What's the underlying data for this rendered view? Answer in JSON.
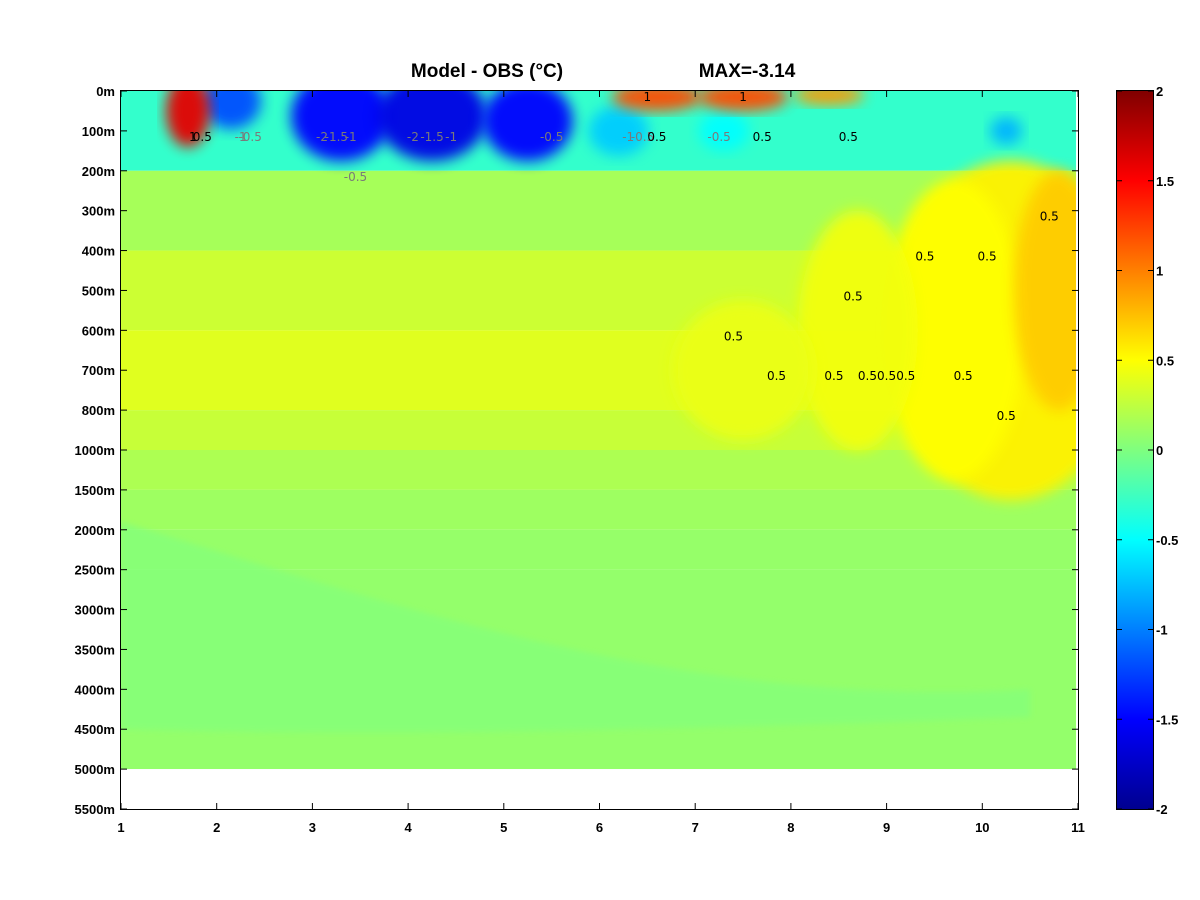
{
  "chart_data": {
    "type": "heatmap",
    "title": "Model - OBS (°C)",
    "annotation": "MAX=-3.14",
    "x_ticks": [
      "1",
      "2",
      "3",
      "4",
      "5",
      "6",
      "7",
      "8",
      "9",
      "10",
      "11"
    ],
    "xlim": [
      1,
      11
    ],
    "y_ticks": [
      "0m",
      "100m",
      "200m",
      "300m",
      "400m",
      "500m",
      "600m",
      "700m",
      "800m",
      "1000m",
      "1500m",
      "2000m",
      "2500m",
      "3000m",
      "3500m",
      "4000m",
      "4500m",
      "5000m",
      "5500m"
    ],
    "data_bottom_depth": "5000m",
    "colorbar": {
      "min": -2,
      "max": 2,
      "ticks": [
        "2",
        "1.5",
        "1",
        "0.5",
        "0",
        "-0.5",
        "-1",
        "-1.5",
        "-2"
      ],
      "colormap": "jet"
    },
    "contour_labels": [
      {
        "text": "1",
        "x": 1.75,
        "y": "100m"
      },
      {
        "text": "0.5",
        "x": 1.85,
        "y": "100m"
      },
      {
        "text": "-1",
        "x": 2.25,
        "y": "100m"
      },
      {
        "text": "-0.5",
        "x": 2.35,
        "y": "100m"
      },
      {
        "text": "-2",
        "x": 3.1,
        "y": "100m"
      },
      {
        "text": "-1.5",
        "x": 3.25,
        "y": "100m"
      },
      {
        "text": "-1",
        "x": 3.4,
        "y": "100m"
      },
      {
        "text": "-0.5",
        "x": 3.45,
        "y": "200m"
      },
      {
        "text": "-2",
        "x": 4.05,
        "y": "100m"
      },
      {
        "text": "-1.5",
        "x": 4.25,
        "y": "100m"
      },
      {
        "text": "-1",
        "x": 4.45,
        "y": "100m"
      },
      {
        "text": "-0.5",
        "x": 5.5,
        "y": "100m"
      },
      {
        "text": "-1",
        "x": 6.3,
        "y": "100m"
      },
      {
        "text": "-0.5",
        "x": 6.45,
        "y": "100m"
      },
      {
        "text": "1",
        "x": 6.5,
        "y": "0m"
      },
      {
        "text": "0.5",
        "x": 6.6,
        "y": "100m"
      },
      {
        "text": "-0.5",
        "x": 7.25,
        "y": "100m"
      },
      {
        "text": "1",
        "x": 7.5,
        "y": "0m"
      },
      {
        "text": "0.5",
        "x": 7.7,
        "y": "100m"
      },
      {
        "text": "0.5",
        "x": 8.6,
        "y": "100m"
      },
      {
        "text": "0.5",
        "x": 10.7,
        "y": "300m"
      },
      {
        "text": "0.5",
        "x": 8.65,
        "y": "500m"
      },
      {
        "text": "0.5",
        "x": 9.4,
        "y": "400m"
      },
      {
        "text": "0.5",
        "x": 10.05,
        "y": "400m"
      },
      {
        "text": "0.5",
        "x": 7.4,
        "y": "600m"
      },
      {
        "text": "0.5",
        "x": 7.85,
        "y": "700m"
      },
      {
        "text": "0.5",
        "x": 8.45,
        "y": "700m"
      },
      {
        "text": "0.5",
        "x": 8.8,
        "y": "700m"
      },
      {
        "text": "0.5",
        "x": 9.2,
        "y": "700m"
      },
      {
        "text": "0.5",
        "x": 9.0,
        "y": "700m"
      },
      {
        "text": "0.5",
        "x": 9.8,
        "y": "700m"
      },
      {
        "text": "0.5",
        "x": 10.25,
        "y": "800m"
      }
    ]
  }
}
